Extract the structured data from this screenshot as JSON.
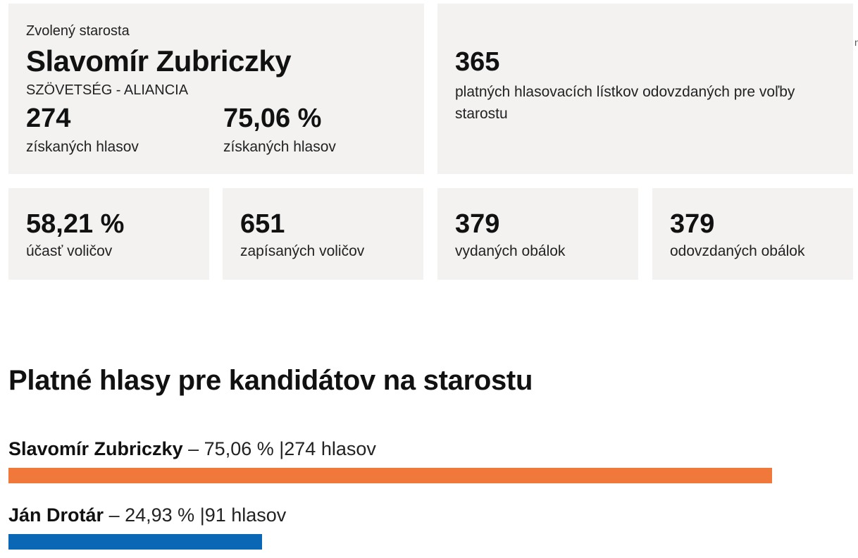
{
  "summary": {
    "winner": {
      "label": "Zvolený starosta",
      "name": "Slavomír Zubriczky",
      "party": "SZÖVETSÉG - ALIANCIA",
      "votes": "274",
      "votes_label": "získaných hlasov",
      "percent": "75,06 %",
      "percent_label": "získaných hlasov"
    },
    "valid_ballots": {
      "value": "365",
      "label": "platných hlasovacích lístkov odovzdaných pre voľby starostu"
    },
    "turnout": {
      "value": "58,21 %",
      "label": "účasť voličov"
    },
    "registered": {
      "value": "651",
      "label": "zapísaných voličov"
    },
    "issued": {
      "value": "379",
      "label": "vydaných obálok"
    },
    "returned": {
      "value": "379",
      "label": "odovzdaných obálok"
    },
    "edge_mark": "n"
  },
  "results": {
    "title": "Platné hlasy pre kandidátov na starostu",
    "separator": "–",
    "divider": "|",
    "candidates": [
      {
        "name": "Slavomír Zubriczky",
        "percent_text": "75,06 %",
        "votes_text": "274 hlasov",
        "share": 0.7506,
        "color": "#f0783a"
      },
      {
        "name": "Ján Drotár",
        "percent_text": "24,93 %",
        "votes_text": "91 hlasov",
        "share": 0.2493,
        "color": "#0967b5"
      }
    ]
  }
}
